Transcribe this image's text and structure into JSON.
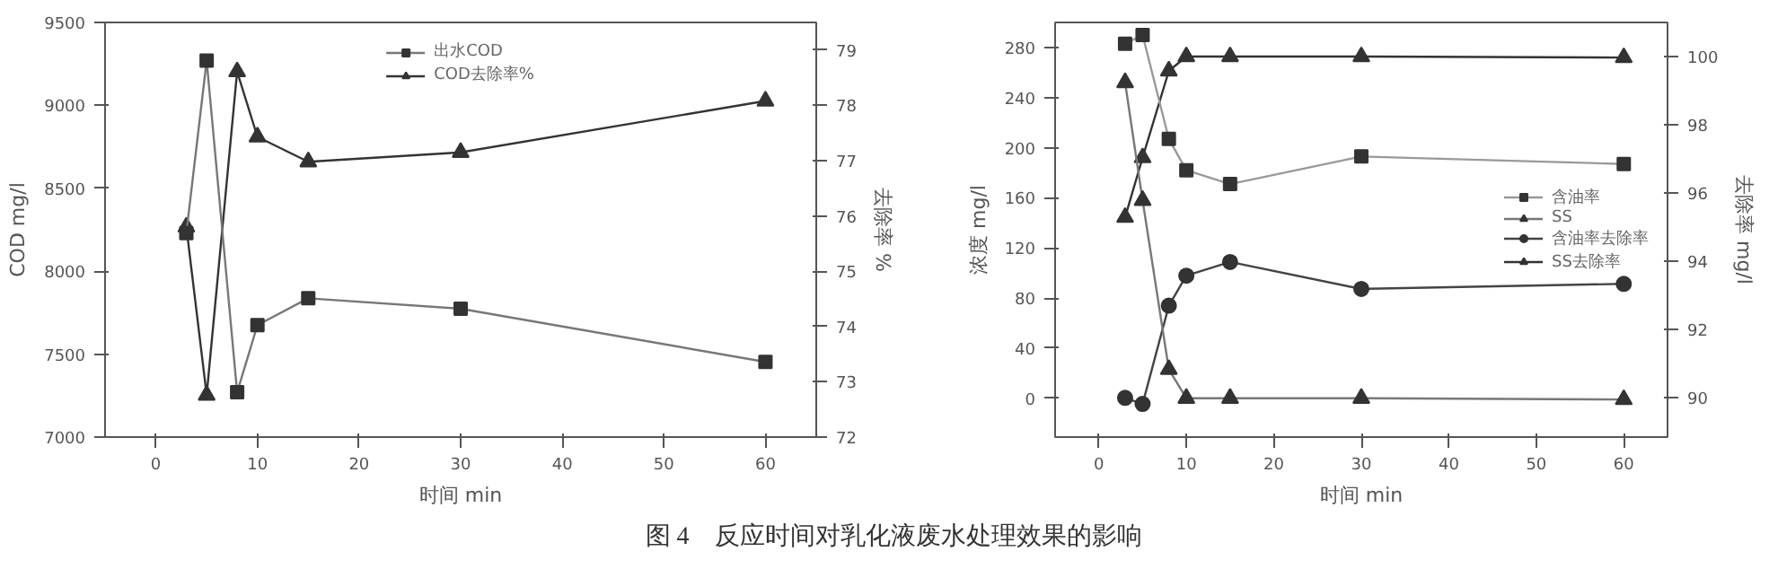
{
  "chart_data": [
    {
      "type": "line",
      "xlabel": "时间 min",
      "ylabel": "COD mg/l",
      "y2label": "去除率 %",
      "x": [
        3,
        5,
        8,
        10,
        15,
        30,
        60
      ],
      "xlim": [
        -5,
        65
      ],
      "xticks": [
        0,
        10,
        20,
        30,
        40,
        50,
        60
      ],
      "ylim": [
        7000,
        9500
      ],
      "yticks": [
        7000,
        7500,
        8000,
        8500,
        9000,
        9500
      ],
      "y2lim": [
        72,
        79.5
      ],
      "y2ticks": [
        72,
        73,
        74,
        75,
        76,
        77,
        78,
        79
      ],
      "grid": false,
      "legend": "top",
      "series": [
        {
          "name": "出水COD",
          "color": "#777777",
          "marker": "square",
          "values": [
            8230,
            9270,
            7270,
            7675,
            7837,
            7774,
            7453
          ]
        },
        {
          "name": "COD去除率%",
          "color": "#333333",
          "marker": "triangle",
          "axis": "y2",
          "values": [
            75.8,
            72.76,
            78.61,
            77.43,
            76.98,
            77.15,
            78.08
          ]
        }
      ],
      "annotations": [
        "图 4　反应时间对乳化液废水处理效果的影响"
      ]
    },
    {
      "type": "line",
      "xlabel": "时间 min",
      "ylabel": "浓度 mg/l",
      "y2label": "去除率 mg/l",
      "x": [
        3,
        5,
        8,
        10,
        15,
        30,
        60
      ],
      "xlim": [
        -5,
        65
      ],
      "xticks": [
        0,
        10,
        20,
        30,
        40,
        50,
        60
      ],
      "ylim": [
        -31,
        300
      ],
      "yticks": [
        0,
        40,
        80,
        120,
        160,
        200,
        240,
        280
      ],
      "y2lim": [
        88.85,
        101
      ],
      "y2ticks": [
        90,
        92,
        94,
        96,
        98,
        100
      ],
      "grid": false,
      "legend": "right",
      "series": [
        {
          "name": "含油率",
          "color": "#999999",
          "marker": "square",
          "values": [
            283,
            290,
            207,
            182,
            171,
            193,
            187
          ]
        },
        {
          "name": "SS",
          "color": "#777777",
          "marker": "triangle",
          "values": [
            252,
            158,
            23,
            0,
            0,
            0,
            -1
          ]
        },
        {
          "name": "含油率去除率",
          "color": "#444444",
          "marker": "circle",
          "axis": "y2",
          "values": [
            90.0,
            89.82,
            92.7,
            93.58,
            93.98,
            93.19,
            93.34
          ]
        },
        {
          "name": "SS去除率",
          "color": "#333333",
          "marker": "triangle",
          "axis": "y2",
          "values": [
            95.29,
            97.04,
            99.58,
            100,
            100,
            100,
            99.97
          ]
        }
      ]
    }
  ]
}
